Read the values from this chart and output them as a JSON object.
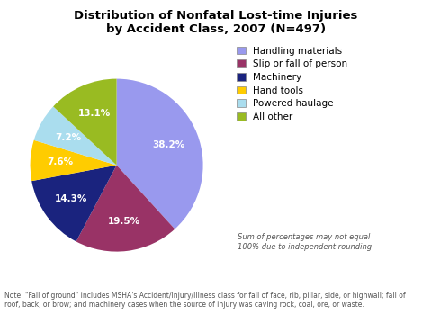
{
  "title": "Distribution of Nonfatal Lost-time Injuries\nby Accident Class, 2007 (N=497)",
  "labels": [
    "Handling materials",
    "Slip or fall of person",
    "Machinery",
    "Hand tools",
    "Powered haulage",
    "All other"
  ],
  "values": [
    38.2,
    19.5,
    14.3,
    7.6,
    7.2,
    13.1
  ],
  "colors": [
    "#9999EE",
    "#993366",
    "#1A237E",
    "#FFCC00",
    "#AADDEE",
    "#99BB22"
  ],
  "pct_labels": [
    "38.2%",
    "19.5%",
    "14.3%",
    "7.6%",
    "7.2%",
    "13.1%"
  ],
  "startangle": 90,
  "note_text": "Note: \"Fall of ground\" includes MSHA's Accident/Injury/Illness class for fall of face, rib, pillar, side, or highwall; fall of\nroof, back, or brow; and machinery cases when the source of injury was caving rock, coal, ore, or waste.",
  "sum_note": "Sum of percentages may not equal\n100% due to independent rounding",
  "background_color": "#FFFFFF",
  "note_color": "#555555"
}
